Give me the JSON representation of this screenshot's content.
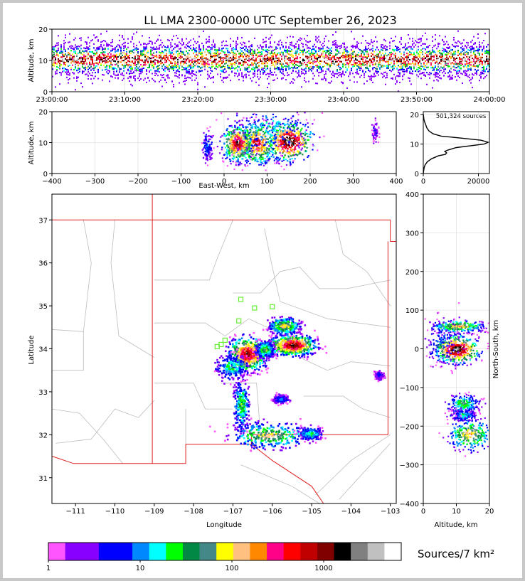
{
  "title": "LL LMA 2300-0000 UTC September 26, 2023",
  "colorbar_label": "Sources/7 km²",
  "source_count": "501,324 sources",
  "chart_data": [
    {
      "id": "time-altitude",
      "type": "heatmap",
      "ylabel": "Altitude, km",
      "ylim": [
        0,
        20
      ],
      "yticks": [
        "0",
        "10",
        "20"
      ],
      "xlim": [
        0,
        60
      ],
      "xticks": [
        "23:00:00",
        "23:10:00",
        "23:20:00",
        "23:30:00",
        "23:40:00",
        "23:50:00",
        "24:00:00"
      ],
      "band_center_km": 10.5,
      "band_spread_km": 8
    },
    {
      "id": "eastwest-altitude",
      "type": "heatmap",
      "xlabel": "East-West, km",
      "ylabel": "Altitude, km",
      "xlim": [
        -400,
        400
      ],
      "ylim": [
        0,
        20
      ],
      "xticks": [
        "−400",
        "−300",
        "−200",
        "−100",
        "0",
        "100",
        "200",
        "300",
        "400"
      ],
      "yticks": [
        "0",
        "10",
        "20"
      ],
      "cells": [
        {
          "x": 150,
          "y": 10.5,
          "sx": 28,
          "sy": 3.2,
          "level": 0.95
        },
        {
          "x": 75,
          "y": 10,
          "sx": 22,
          "sy": 3.5,
          "level": 0.78
        },
        {
          "x": 30,
          "y": 10,
          "sx": 18,
          "sy": 3,
          "level": 0.85
        },
        {
          "x": 105,
          "y": 15,
          "sx": 45,
          "sy": 4,
          "level": 0.35
        },
        {
          "x": -40,
          "y": 9,
          "sx": 6,
          "sy": 2.5,
          "level": 0.25
        },
        {
          "x": 350,
          "y": 14,
          "sx": 4,
          "sy": 2,
          "level": 0.12
        }
      ]
    },
    {
      "id": "altitude-histogram",
      "type": "line",
      "xlim": [
        0,
        24000
      ],
      "ylim": [
        0,
        21
      ],
      "xticks": [
        "0",
        "20000"
      ],
      "yticks": [
        "0",
        "10",
        "20"
      ],
      "x": [
        0,
        300,
        700,
        1500,
        3000,
        5500,
        8000,
        8500,
        7800,
        9000,
        12000,
        18000,
        22000,
        23500,
        21000,
        14000,
        6500,
        3500,
        2000,
        1300,
        900,
        500,
        200,
        50
      ],
      "y": [
        0,
        2,
        3,
        4,
        5,
        6,
        6.5,
        7,
        7.5,
        8,
        8.8,
        9.5,
        10,
        10.6,
        11.3,
        12,
        12.7,
        13.5,
        14.5,
        15.5,
        16.5,
        17.5,
        18.5,
        20
      ]
    },
    {
      "id": "plan-view",
      "type": "heatmap",
      "xlabel": "Longitude",
      "ylabel": "Latitude",
      "xlim": [
        -111.6,
        -102.85
      ],
      "ylim": [
        30.4,
        37.6
      ],
      "xticks": [
        "−111",
        "−110",
        "−109",
        "−108",
        "−107",
        "−106",
        "−105",
        "−104",
        "−103"
      ],
      "yticks": [
        "31",
        "32",
        "33",
        "34",
        "35",
        "36",
        "37"
      ],
      "stations": [
        [
          -106.8,
          35.15
        ],
        [
          -106.45,
          34.95
        ],
        [
          -106.0,
          34.98
        ],
        [
          -106.85,
          34.65
        ],
        [
          -107.2,
          34.2
        ],
        [
          -107.4,
          34.05
        ],
        [
          -107.3,
          34.1
        ]
      ],
      "cells": [
        {
          "lon": -106.65,
          "lat": 33.9,
          "sx": 0.25,
          "sy": 0.2,
          "level": 0.85
        },
        {
          "lon": -105.5,
          "lat": 34.1,
          "sx": 0.3,
          "sy": 0.12,
          "level": 0.9
        },
        {
          "lon": -105.7,
          "lat": 34.55,
          "sx": 0.2,
          "sy": 0.1,
          "level": 0.6
        },
        {
          "lon": -106.2,
          "lat": 34.0,
          "sx": 0.12,
          "sy": 0.1,
          "level": 0.5
        },
        {
          "lon": -106.8,
          "lat": 32.7,
          "sx": 0.1,
          "sy": 0.3,
          "level": 0.45
        },
        {
          "lon": -106.1,
          "lat": 32.0,
          "sx": 0.5,
          "sy": 0.15,
          "level": 0.55
        },
        {
          "lon": -105.05,
          "lat": 32.05,
          "sx": 0.15,
          "sy": 0.08,
          "level": 0.4
        },
        {
          "lon": -105.8,
          "lat": 32.85,
          "sx": 0.1,
          "sy": 0.05,
          "level": 0.3
        },
        {
          "lon": -107.05,
          "lat": 33.6,
          "sx": 0.2,
          "sy": 0.15,
          "level": 0.4
        },
        {
          "lon": -103.3,
          "lat": 33.4,
          "sx": 0.06,
          "sy": 0.05,
          "level": 0.2
        }
      ]
    },
    {
      "id": "altitude-northsouth",
      "type": "heatmap",
      "xlabel": "Altitude, km",
      "ylabel": "North-South, km",
      "xlim": [
        0,
        20
      ],
      "ylim": [
        -400,
        400
      ],
      "xticks": [
        "0",
        "10",
        "20"
      ],
      "yticks": [
        "−400",
        "−300",
        "−200",
        "−100",
        "0",
        "100",
        "200",
        "300",
        "400"
      ],
      "cells": [
        {
          "alt": 10,
          "ns": 0,
          "sx": 3.5,
          "sy": 18,
          "level": 0.95
        },
        {
          "alt": 10.5,
          "ns": 60,
          "sx": 4,
          "sy": 8,
          "level": 0.6
        },
        {
          "alt": 12,
          "ns": -140,
          "sx": 2.5,
          "sy": 12,
          "level": 0.45
        },
        {
          "alt": 12,
          "ns": -170,
          "sx": 2,
          "sy": 8,
          "level": 0.35
        },
        {
          "alt": 14,
          "ns": -220,
          "sx": 3.5,
          "sy": 20,
          "level": 0.6
        },
        {
          "alt": 5,
          "ns": 20,
          "sx": 3,
          "sy": 35,
          "level": 0.25
        }
      ]
    }
  ],
  "colorbar": {
    "colors": [
      "#ff55ff",
      "#8800ff",
      "#8800ff",
      "#0000ff",
      "#0000ff",
      "#0088ff",
      "#00ffff",
      "#00ff00",
      "#008844",
      "#448888",
      "#ffff00",
      "#ffc080",
      "#ff8800",
      "#ff0088",
      "#ff0000",
      "#c00000",
      "#800000",
      "#000000",
      "#808080",
      "#c0c0c0",
      "#ffffff"
    ],
    "tick_labels": [
      "1",
      "10",
      "100",
      "1000"
    ],
    "tick_values": [
      1,
      10,
      100,
      1000
    ],
    "range": [
      1,
      7000
    ]
  }
}
